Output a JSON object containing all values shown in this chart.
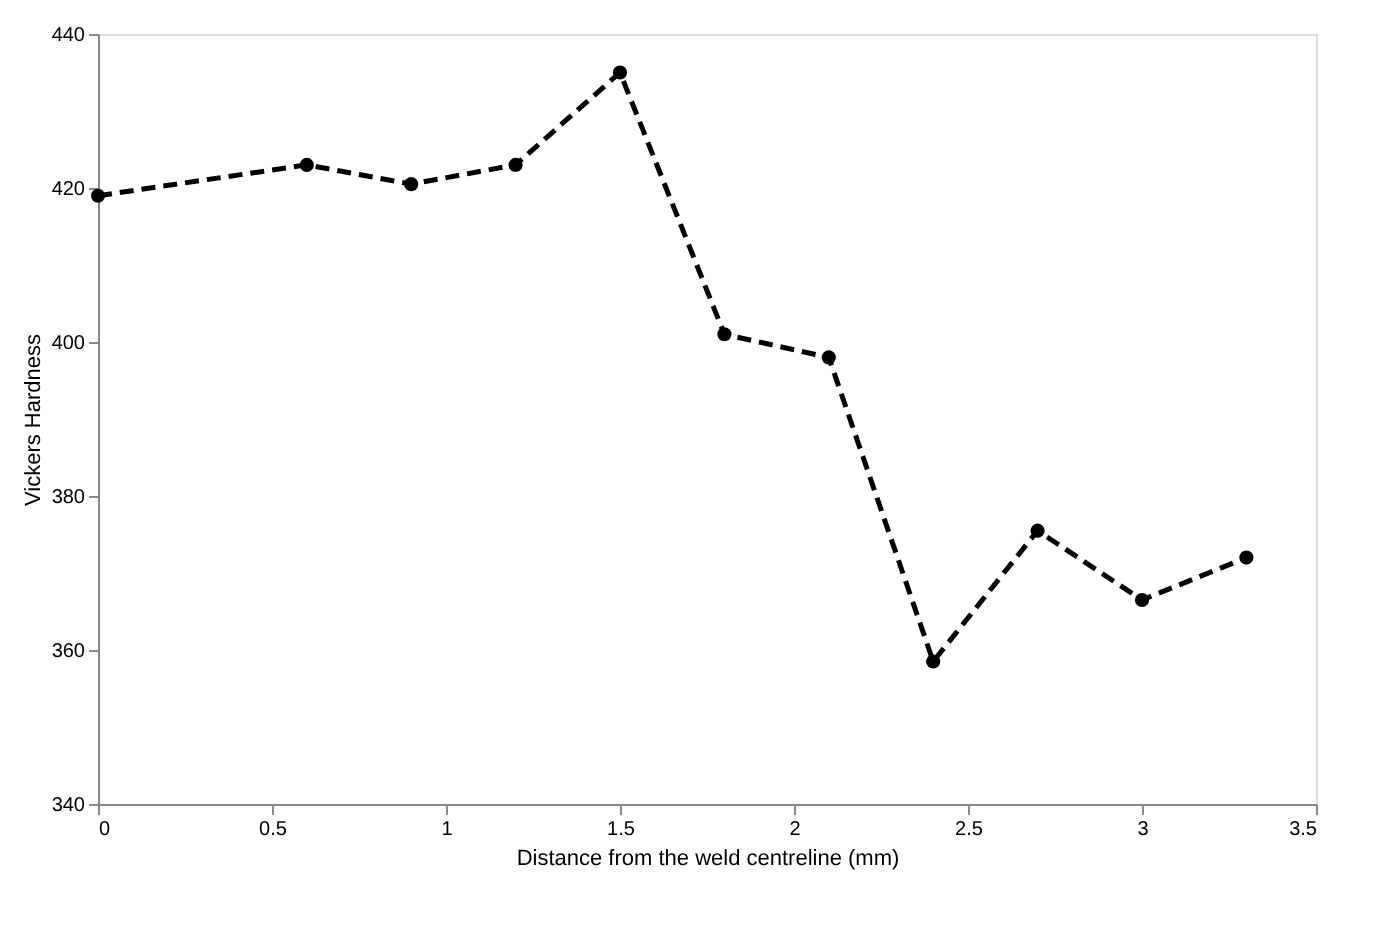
{
  "chart_data": {
    "type": "line",
    "xlabel": "Distance from the weld centreline (mm)",
    "ylabel": "Vickers Hardness",
    "x": [
      0,
      0.6,
      0.9,
      1.2,
      1.5,
      1.8,
      2.1,
      2.4,
      2.7,
      3.0,
      3.3
    ],
    "series": [
      {
        "color": "#000000",
        "values": [
          419,
          423,
          420.5,
          423,
          435,
          401,
          398,
          358.5,
          375.5,
          366.5,
          372
        ]
      }
    ],
    "xlim": [
      0,
      3.5
    ],
    "xticks": [
      0,
      0.5,
      1,
      1.5,
      2,
      2.5,
      3,
      3.5
    ],
    "ylim": [
      340,
      440
    ],
    "yticks": [
      340,
      360,
      380,
      400,
      420,
      440
    ],
    "grid": false,
    "legend": false,
    "marker": "circle",
    "line_style": "dashed"
  }
}
